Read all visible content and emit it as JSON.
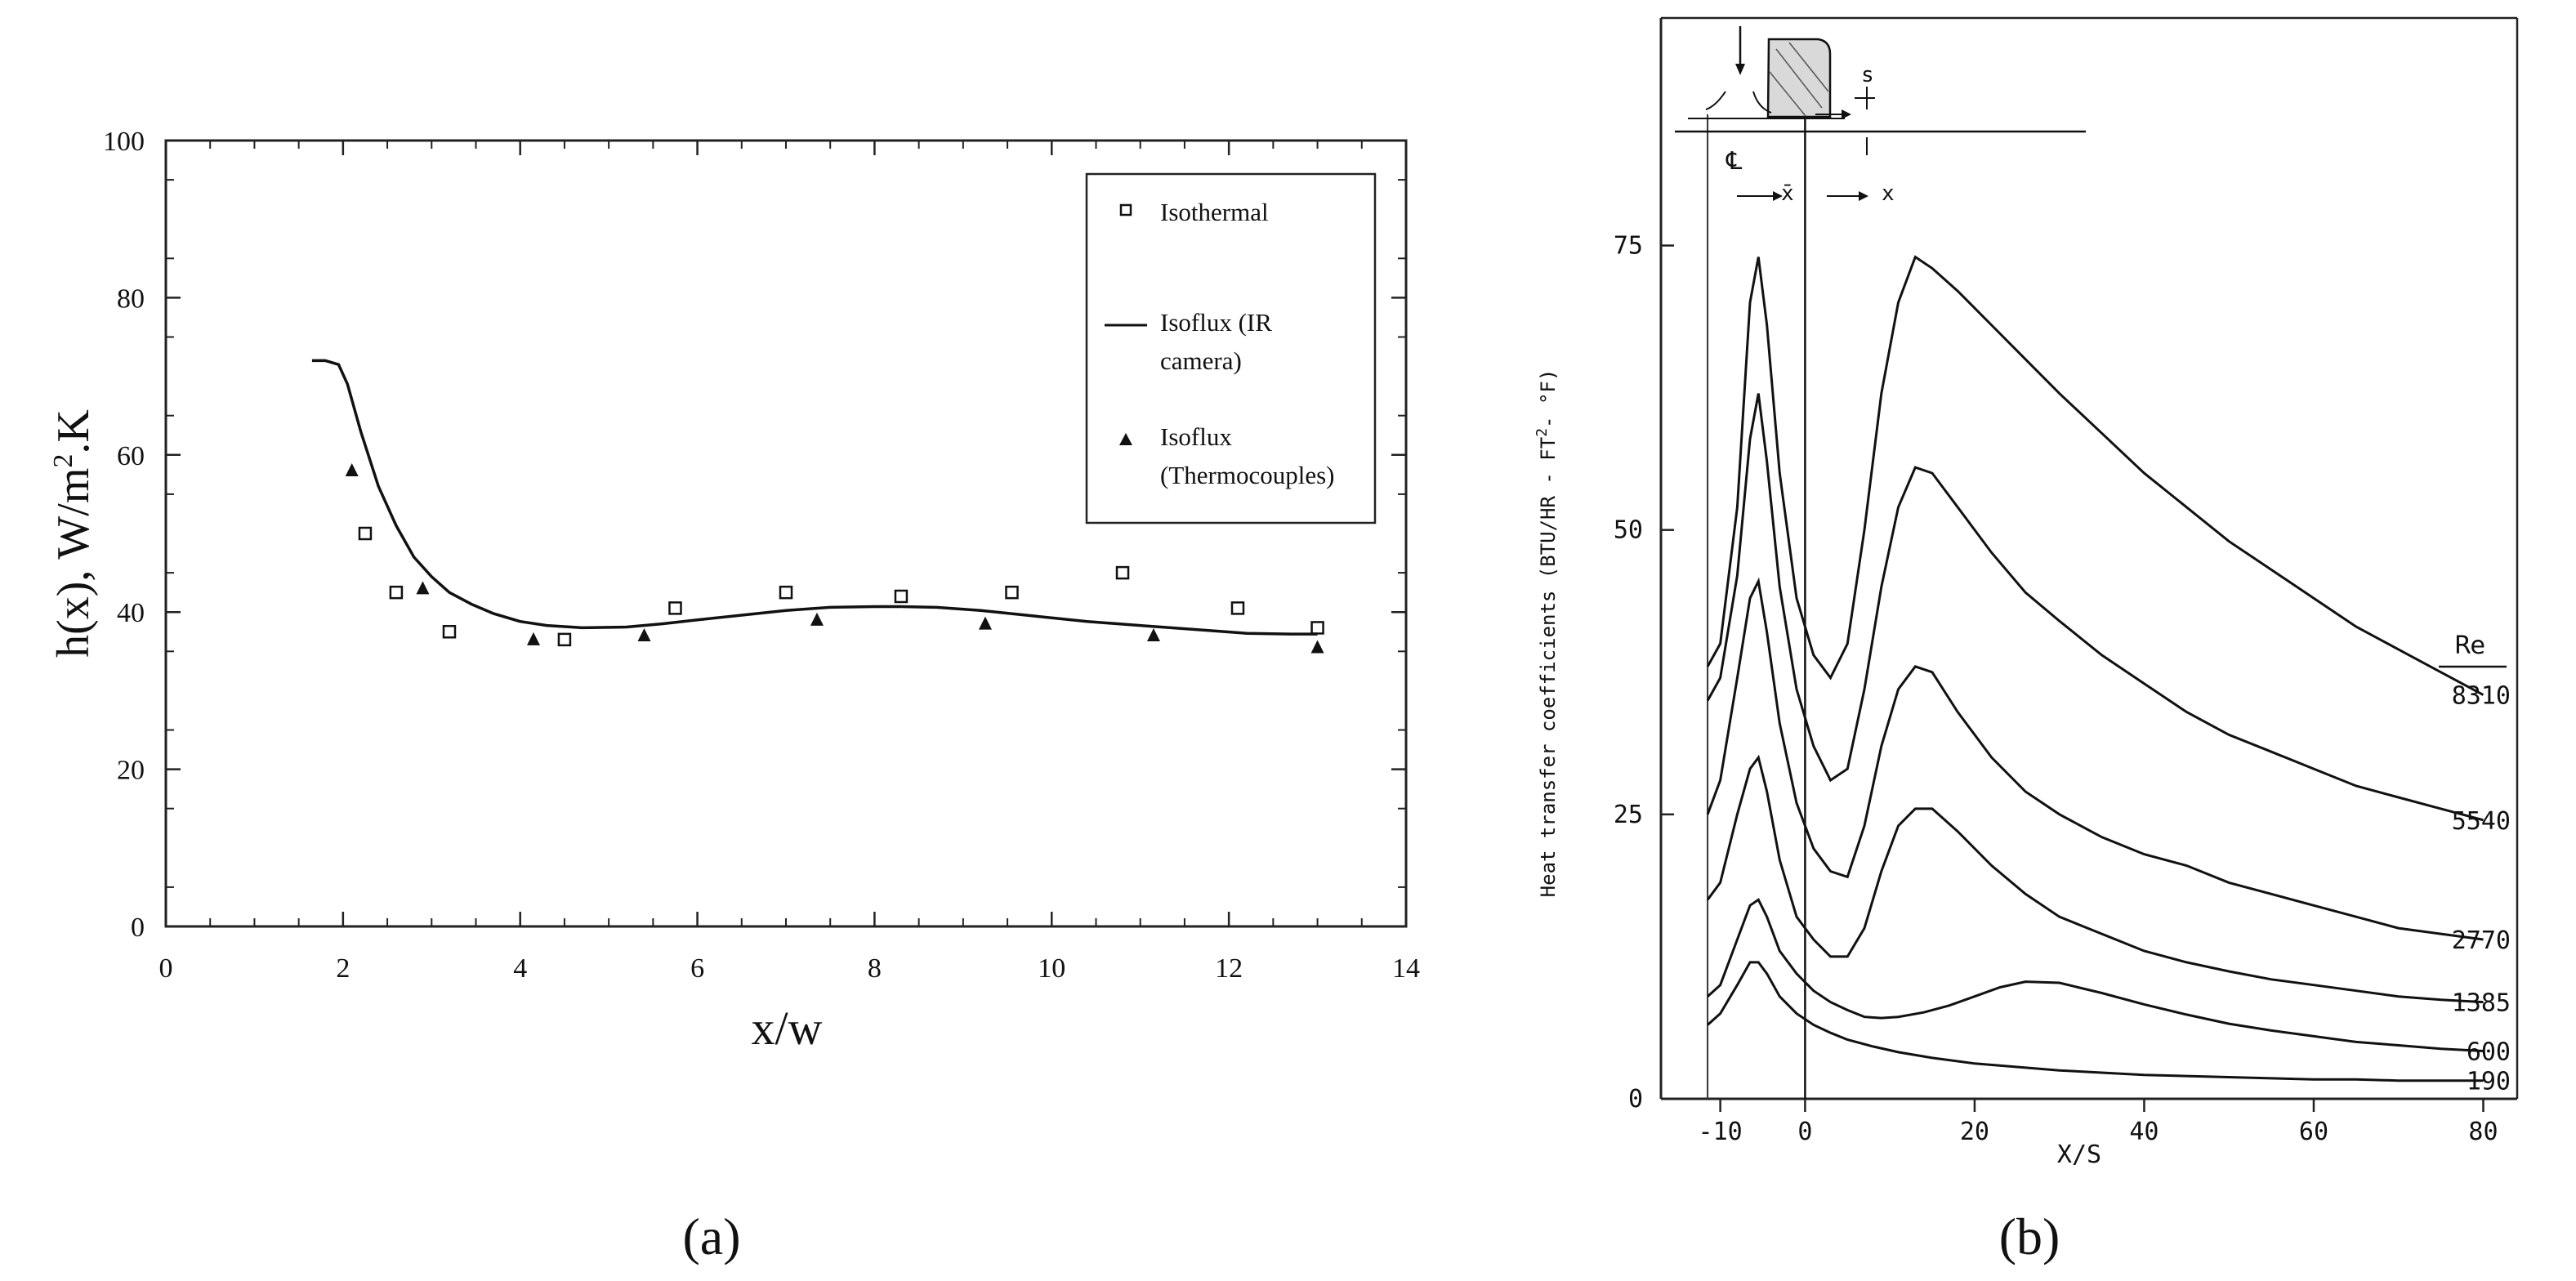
{
  "figure": {
    "panel_a_label": "(a)",
    "panel_b_label": "(b)"
  },
  "chart_data": [
    {
      "type": "line",
      "panel": "a",
      "xlabel": "x/w",
      "ylabel_main": "h(x),  W/m",
      "ylabel_sup": "2",
      "ylabel_tail": ".K",
      "xlim": [
        0,
        14
      ],
      "ylim": [
        0,
        100
      ],
      "xticks": [
        0,
        2,
        4,
        6,
        8,
        10,
        12,
        14
      ],
      "yticks": [
        0,
        20,
        40,
        60,
        80,
        100
      ],
      "legend": {
        "placement": "top-right",
        "entries": [
          {
            "label_lines": [
              "Isothermal"
            ],
            "marker": "open-square"
          },
          {
            "label_lines": [
              "Isoflux (IR",
              "camera)"
            ],
            "marker": "line"
          },
          {
            "label_lines": [
              "Isoflux",
              "(Thermocouples)"
            ],
            "marker": "filled-triangle"
          }
        ]
      },
      "series": [
        {
          "name": "Isothermal",
          "style": "open-square",
          "x": [
            2.25,
            2.6,
            3.2,
            4.5,
            5.75,
            7.0,
            8.3,
            9.55,
            10.8,
            12.1,
            13.0
          ],
          "y": [
            50,
            42.5,
            37.5,
            36.5,
            40.5,
            42.5,
            42,
            42.5,
            45,
            40.5,
            38
          ]
        },
        {
          "name": "Isoflux (IR camera)",
          "style": "line",
          "x": [
            1.65,
            1.8,
            1.95,
            2.05,
            2.2,
            2.4,
            2.6,
            2.8,
            3.0,
            3.2,
            3.45,
            3.7,
            4.0,
            4.3,
            4.7,
            5.2,
            5.6,
            6.0,
            6.5,
            7.0,
            7.5,
            8.0,
            8.3,
            8.7,
            9.2,
            9.8,
            10.4,
            11.0,
            11.6,
            12.2,
            12.7,
            13.0
          ],
          "y": [
            72,
            72,
            71.5,
            69,
            63,
            56,
            51,
            47,
            44.5,
            42.5,
            41,
            39.8,
            38.8,
            38.3,
            38,
            38.1,
            38.5,
            39,
            39.6,
            40.2,
            40.6,
            40.7,
            40.7,
            40.6,
            40.2,
            39.5,
            38.8,
            38.3,
            37.8,
            37.3,
            37.2,
            37.2
          ]
        },
        {
          "name": "Isoflux (Thermocouples)",
          "style": "filled-triangle",
          "x": [
            2.1,
            2.9,
            4.15,
            5.4,
            7.35,
            9.25,
            11.15,
            13.0
          ],
          "y": [
            58,
            43,
            36.5,
            37,
            39,
            38.5,
            37,
            35.5
          ]
        }
      ]
    },
    {
      "type": "line",
      "panel": "b",
      "xlabel": "X/S",
      "ylabel": "Heat transfer coefficients (BTU/HR - FT",
      "ylabel_sup": "2",
      "ylabel_tail": "- °F)",
      "xlim": [
        -17,
        84
      ],
      "ylim": [
        0,
        95
      ],
      "xticks": [
        -10,
        0,
        20,
        40,
        60,
        80
      ],
      "xtick_labels": [
        "-10",
        "0",
        "20",
        "40",
        "60",
        "80"
      ],
      "yticks": [
        0,
        25,
        50,
        75
      ],
      "legend_title": "Re",
      "inset": {
        "s_label": "s",
        "xbar_label": "x̄",
        "x_label": "x",
        "centerline_label": "℄"
      },
      "series": [
        {
          "name": "8310",
          "x": [
            -11.5,
            -10,
            -8,
            -6.5,
            -5.5,
            -4.5,
            -3,
            -1,
            1,
            3,
            5,
            7,
            9,
            11,
            13,
            15,
            18,
            22,
            26,
            30,
            35,
            40,
            45,
            50,
            55,
            60,
            65,
            70,
            75,
            80
          ],
          "y": [
            38,
            40,
            52,
            70,
            74,
            68,
            55,
            44,
            39,
            37,
            40,
            50,
            62,
            70,
            74,
            73,
            71,
            68,
            65,
            62,
            58.5,
            55,
            52,
            49,
            46.5,
            44,
            41.5,
            39.5,
            37.5,
            35.5
          ]
        },
        {
          "name": "5540",
          "x": [
            -11.5,
            -10,
            -8,
            -6.5,
            -5.5,
            -4.5,
            -3,
            -1,
            1,
            3,
            5,
            7,
            9,
            11,
            13,
            15,
            18,
            22,
            26,
            30,
            35,
            40,
            45,
            50,
            55,
            60,
            65,
            70,
            75,
            80
          ],
          "y": [
            35,
            37,
            46,
            58,
            62,
            56,
            45,
            36,
            31,
            28,
            29,
            36,
            45,
            52,
            55.5,
            55,
            52,
            48,
            44.5,
            42,
            39,
            36.5,
            34,
            32,
            30.5,
            29,
            27.5,
            26.5,
            25.5,
            24.5
          ]
        },
        {
          "name": "2770",
          "x": [
            -11.5,
            -10,
            -8,
            -6.5,
            -5.5,
            -4.5,
            -3,
            -1,
            1,
            3,
            5,
            7,
            9,
            11,
            13,
            15,
            18,
            22,
            26,
            30,
            35,
            40,
            45,
            50,
            55,
            60,
            65,
            70,
            75,
            80
          ],
          "y": [
            25,
            28,
            37,
            44,
            45.5,
            41,
            33,
            26,
            22,
            20,
            19.5,
            24,
            31,
            36,
            38,
            37.5,
            34,
            30,
            27,
            25,
            23,
            21.5,
            20.5,
            19,
            18,
            17,
            16,
            15,
            14.5,
            14
          ]
        },
        {
          "name": "1385",
          "x": [
            -11.5,
            -10,
            -8,
            -6.5,
            -5.5,
            -4.5,
            -3,
            -1,
            1,
            3,
            5,
            7,
            9,
            11,
            13,
            15,
            18,
            22,
            26,
            30,
            35,
            40,
            45,
            50,
            55,
            60,
            65,
            70,
            75,
            80
          ],
          "y": [
            17.5,
            19,
            25,
            29,
            30,
            27,
            21,
            16,
            14,
            12.5,
            12.5,
            15,
            20,
            24,
            25.5,
            25.5,
            23.5,
            20.5,
            18,
            16,
            14.5,
            13,
            12,
            11.2,
            10.5,
            10,
            9.5,
            9,
            8.7,
            8.5
          ]
        },
        {
          "name": "600",
          "x": [
            -11.5,
            -10,
            -8,
            -6.5,
            -5.5,
            -4.5,
            -3,
            -1,
            1,
            3,
            5,
            7,
            9,
            11,
            14,
            17,
            20,
            23,
            26,
            30,
            35,
            40,
            45,
            50,
            55,
            60,
            65,
            70,
            75,
            80
          ],
          "y": [
            9,
            10,
            14,
            17,
            17.5,
            16,
            13,
            11,
            9.5,
            8.5,
            7.8,
            7.2,
            7.1,
            7.2,
            7.6,
            8.2,
            9,
            9.8,
            10.3,
            10.2,
            9.3,
            8.3,
            7.4,
            6.6,
            6,
            5.5,
            5,
            4.7,
            4.4,
            4.2
          ]
        },
        {
          "name": "190",
          "x": [
            -11.5,
            -10,
            -8,
            -6.5,
            -5.5,
            -4.5,
            -3,
            -1,
            1,
            3,
            5,
            8,
            11,
            15,
            20,
            25,
            30,
            35,
            40,
            45,
            50,
            55,
            60,
            65,
            70,
            75,
            80
          ],
          "y": [
            6.5,
            7.5,
            10,
            12,
            12,
            11,
            9,
            7.5,
            6.5,
            5.8,
            5.2,
            4.6,
            4.1,
            3.6,
            3.1,
            2.8,
            2.5,
            2.3,
            2.1,
            2,
            1.9,
            1.8,
            1.7,
            1.7,
            1.6,
            1.6,
            1.6
          ]
        }
      ]
    }
  ]
}
